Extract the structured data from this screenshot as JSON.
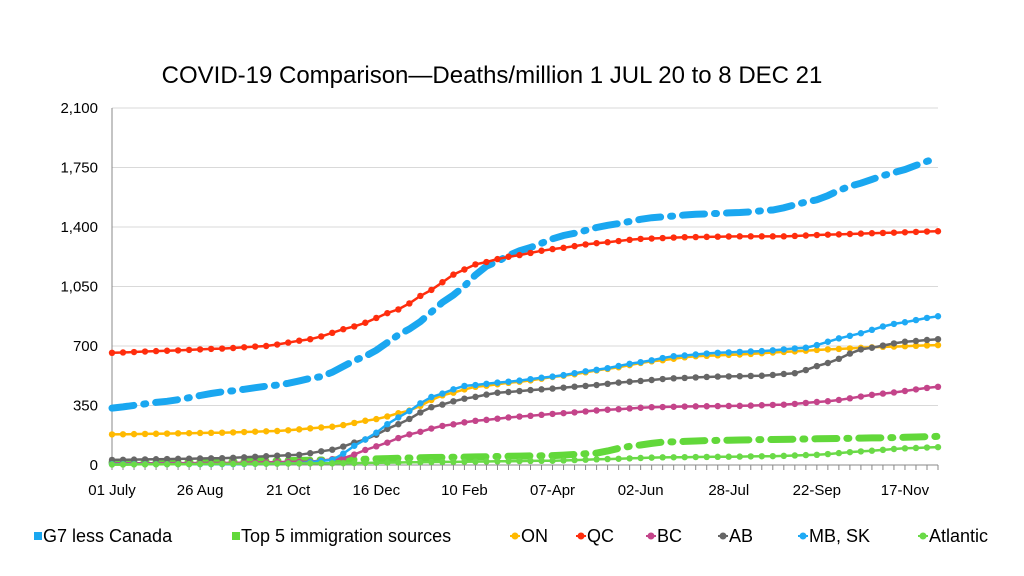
{
  "chart_data": {
    "type": "line",
    "title": "COVID-19 Comparison—Deaths/million 1 JUL 20 to 8 DEC 21",
    "xlabel": "",
    "ylabel": "",
    "ylim": [
      0,
      2100
    ],
    "yticks": [
      0,
      350,
      700,
      1050,
      1400,
      1750,
      2100
    ],
    "ytick_labels": [
      "0",
      "350",
      "700",
      "1,050",
      "1,400",
      "1,750",
      "2,100"
    ],
    "x_interval": "weekly",
    "x_count": 76,
    "xtick_labels": [
      "01 July",
      "26 Aug",
      "21 Oct",
      "16 Dec",
      "10 Feb",
      "07-Apr",
      "02-Jun",
      "28-Jul",
      "22-Sep",
      "17-Nov"
    ],
    "xtick_every": 8,
    "grid": true,
    "legend_position": "bottom",
    "series": [
      {
        "name": "G7 less Canada",
        "color": "#1aa7f0",
        "style": "dashdot",
        "marker": "square",
        "anchors": [
          [
            0,
            335
          ],
          [
            5,
            375
          ],
          [
            10,
            430
          ],
          [
            15,
            470
          ],
          [
            19,
            520
          ],
          [
            23,
            640
          ],
          [
            27,
            800
          ],
          [
            31,
            1000
          ],
          [
            34,
            1170
          ],
          [
            37,
            1260
          ],
          [
            41,
            1350
          ],
          [
            45,
            1410
          ],
          [
            49,
            1455
          ],
          [
            53,
            1475
          ],
          [
            57,
            1485
          ],
          [
            60,
            1500
          ],
          [
            64,
            1560
          ],
          [
            67,
            1640
          ],
          [
            71,
            1720
          ],
          [
            75,
            1805
          ]
        ]
      },
      {
        "name": "Top 5 immigration sources",
        "color": "#62d83a",
        "style": "dashdot",
        "marker": "square",
        "anchors": [
          [
            0,
            15
          ],
          [
            10,
            20
          ],
          [
            20,
            30
          ],
          [
            30,
            45
          ],
          [
            40,
            55
          ],
          [
            44,
            70
          ],
          [
            47,
            110
          ],
          [
            50,
            135
          ],
          [
            55,
            145
          ],
          [
            60,
            150
          ],
          [
            65,
            155
          ],
          [
            70,
            160
          ],
          [
            75,
            168
          ]
        ]
      },
      {
        "name": "ON",
        "color": "#ffb900",
        "style": "solid",
        "marker": "dot",
        "anchors": [
          [
            0,
            180
          ],
          [
            10,
            190
          ],
          [
            15,
            200
          ],
          [
            20,
            225
          ],
          [
            24,
            270
          ],
          [
            27,
            320
          ],
          [
            30,
            410
          ],
          [
            33,
            460
          ],
          [
            37,
            490
          ],
          [
            41,
            525
          ],
          [
            45,
            565
          ],
          [
            49,
            610
          ],
          [
            53,
            640
          ],
          [
            57,
            650
          ],
          [
            61,
            665
          ],
          [
            65,
            680
          ],
          [
            70,
            695
          ],
          [
            75,
            705
          ]
        ]
      },
      {
        "name": "QC",
        "color": "#ff2d0d",
        "style": "solid",
        "marker": "dot",
        "anchors": [
          [
            0,
            660
          ],
          [
            5,
            672
          ],
          [
            10,
            685
          ],
          [
            14,
            700
          ],
          [
            18,
            740
          ],
          [
            22,
            815
          ],
          [
            26,
            915
          ],
          [
            29,
            1030
          ],
          [
            31,
            1120
          ],
          [
            33,
            1180
          ],
          [
            36,
            1225
          ],
          [
            40,
            1270
          ],
          [
            44,
            1305
          ],
          [
            48,
            1330
          ],
          [
            52,
            1340
          ],
          [
            57,
            1345
          ],
          [
            61,
            1345
          ],
          [
            65,
            1355
          ],
          [
            70,
            1365
          ],
          [
            75,
            1375
          ]
        ]
      },
      {
        "name": "BC",
        "color": "#c4448a",
        "style": "solid",
        "marker": "dot",
        "anchors": [
          [
            0,
            10
          ],
          [
            10,
            12
          ],
          [
            18,
            20
          ],
          [
            21,
            40
          ],
          [
            24,
            110
          ],
          [
            27,
            180
          ],
          [
            30,
            230
          ],
          [
            33,
            260
          ],
          [
            37,
            285
          ],
          [
            41,
            305
          ],
          [
            45,
            325
          ],
          [
            49,
            340
          ],
          [
            53,
            345
          ],
          [
            57,
            348
          ],
          [
            61,
            355
          ],
          [
            65,
            375
          ],
          [
            70,
            420
          ],
          [
            75,
            460
          ]
        ]
      },
      {
        "name": "AB",
        "color": "#666666",
        "style": "solid",
        "marker": "dot",
        "anchors": [
          [
            0,
            30
          ],
          [
            10,
            40
          ],
          [
            17,
            60
          ],
          [
            20,
            90
          ],
          [
            23,
            150
          ],
          [
            26,
            240
          ],
          [
            29,
            340
          ],
          [
            32,
            390
          ],
          [
            35,
            425
          ],
          [
            39,
            445
          ],
          [
            43,
            465
          ],
          [
            47,
            490
          ],
          [
            51,
            510
          ],
          [
            55,
            520
          ],
          [
            59,
            525
          ],
          [
            62,
            540
          ],
          [
            65,
            600
          ],
          [
            68,
            680
          ],
          [
            72,
            725
          ],
          [
            75,
            740
          ]
        ]
      },
      {
        "name": "MB, SK",
        "color": "#1eaaf5",
        "style": "solid",
        "marker": "dot",
        "anchors": [
          [
            0,
            5
          ],
          [
            10,
            5
          ],
          [
            17,
            10
          ],
          [
            20,
            30
          ],
          [
            23,
            150
          ],
          [
            26,
            280
          ],
          [
            29,
            400
          ],
          [
            32,
            465
          ],
          [
            36,
            490
          ],
          [
            40,
            520
          ],
          [
            44,
            560
          ],
          [
            48,
            605
          ],
          [
            51,
            640
          ],
          [
            55,
            660
          ],
          [
            59,
            670
          ],
          [
            63,
            690
          ],
          [
            67,
            760
          ],
          [
            71,
            830
          ],
          [
            75,
            875
          ]
        ]
      },
      {
        "name": "Atlantic",
        "color": "#6ada47",
        "style": "solid",
        "marker": "dot",
        "anchors": [
          [
            0,
            3
          ],
          [
            20,
            10
          ],
          [
            30,
            18
          ],
          [
            40,
            25
          ],
          [
            45,
            35
          ],
          [
            50,
            45
          ],
          [
            55,
            48
          ],
          [
            60,
            52
          ],
          [
            64,
            60
          ],
          [
            68,
            80
          ],
          [
            72,
            98
          ],
          [
            75,
            105
          ]
        ]
      }
    ]
  }
}
